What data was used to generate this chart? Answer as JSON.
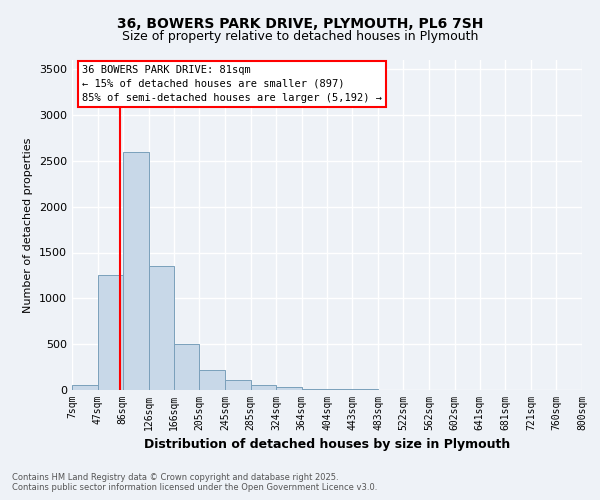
{
  "title": "36, BOWERS PARK DRIVE, PLYMOUTH, PL6 7SH",
  "subtitle": "Size of property relative to detached houses in Plymouth",
  "xlabel": "Distribution of detached houses by size in Plymouth",
  "ylabel": "Number of detached properties",
  "footnote1": "Contains HM Land Registry data © Crown copyright and database right 2025.",
  "footnote2": "Contains public sector information licensed under the Open Government Licence v3.0.",
  "annotation_line1": "36 BOWERS PARK DRIVE: 81sqm",
  "annotation_line2": "← 15% of detached houses are smaller (897)",
  "annotation_line3": "85% of semi-detached houses are larger (5,192) →",
  "bar_color": "#c8d8e8",
  "bar_edge_color": "#7aa0bb",
  "red_line_x": 81,
  "red_line_color": "red",
  "bins": [
    7,
    47,
    86,
    126,
    166,
    205,
    245,
    285,
    324,
    364,
    404,
    443,
    483,
    522,
    562,
    602,
    641,
    681,
    721,
    760,
    800
  ],
  "counts": [
    50,
    1250,
    2600,
    1350,
    500,
    220,
    110,
    50,
    30,
    15,
    8,
    8,
    5,
    2,
    1,
    1,
    0,
    0,
    0,
    0
  ],
  "ylim": [
    0,
    3600
  ],
  "yticks": [
    0,
    500,
    1000,
    1500,
    2000,
    2500,
    3000,
    3500
  ],
  "bg_color": "#eef2f7",
  "grid_color": "white"
}
